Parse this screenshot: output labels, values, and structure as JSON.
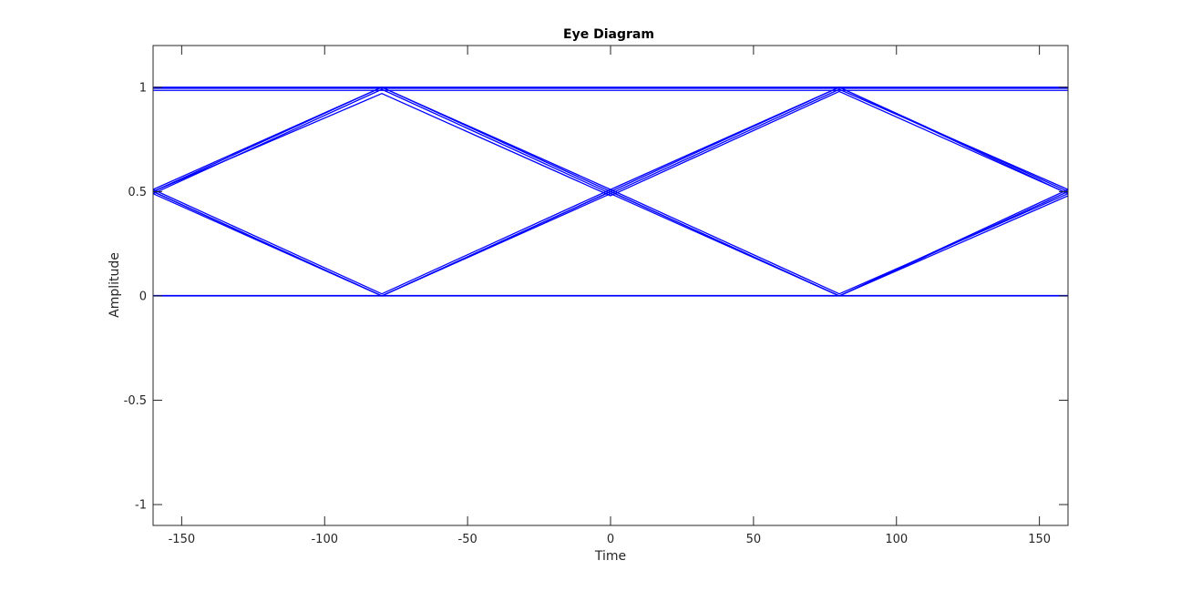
{
  "chart_data": {
    "type": "line",
    "title": "Eye Diagram",
    "xlabel": "Time",
    "ylabel": "Amplitude",
    "xlim": [
      -160,
      160
    ],
    "ylim": [
      -1.1,
      1.2
    ],
    "xticks": [
      -150,
      -100,
      -50,
      0,
      50,
      100,
      150
    ],
    "xtick_labels": [
      "-150",
      "-100",
      "-50",
      "0",
      "50",
      "100",
      "150"
    ],
    "yticks": [
      -1,
      -0.5,
      0,
      0.5,
      1
    ],
    "ytick_labels": [
      "-1",
      "-0.5",
      "0",
      "0.5",
      "1"
    ],
    "grid": false,
    "line_color": "#0000ff",
    "series": [
      {
        "x": [
          -160,
          160
        ],
        "y": [
          1,
          1
        ]
      },
      {
        "x": [
          -160,
          160
        ],
        "y": [
          0.995,
          0.995
        ]
      },
      {
        "x": [
          -160,
          160
        ],
        "y": [
          0.985,
          0.985
        ]
      },
      {
        "x": [
          -160,
          160
        ],
        "y": [
          0,
          0
        ]
      },
      {
        "x": [
          -160,
          160
        ],
        "y": [
          0.002,
          0.002
        ]
      },
      {
        "x": [
          -160,
          -80,
          0,
          80,
          160
        ],
        "y": [
          0.5,
          1,
          0.5,
          1,
          0.5
        ]
      },
      {
        "x": [
          -160,
          -80,
          0,
          80,
          160
        ],
        "y": [
          0.51,
          1,
          0.51,
          1,
          0.49
        ]
      },
      {
        "x": [
          -160,
          -80,
          0,
          80,
          160
        ],
        "y": [
          0.49,
          0.99,
          0.49,
          0.99,
          0.51
        ]
      },
      {
        "x": [
          -160,
          -80,
          0,
          80,
          160
        ],
        "y": [
          0.5,
          0.97,
          0.48,
          0.98,
          0.49
        ]
      },
      {
        "x": [
          -160,
          -80,
          0,
          80,
          160
        ],
        "y": [
          0.5,
          0,
          0.5,
          0,
          0.5
        ]
      },
      {
        "x": [
          -160,
          -80,
          0,
          80,
          160
        ],
        "y": [
          0.49,
          0,
          0.49,
          0,
          0.51
        ]
      },
      {
        "x": [
          -160,
          -80,
          0,
          80,
          160
        ],
        "y": [
          0.51,
          0.01,
          0.51,
          0.01,
          0.49
        ]
      },
      {
        "x": [
          -160,
          -80,
          0,
          80,
          160
        ],
        "y": [
          0.5,
          0,
          0.5,
          0,
          0.48
        ]
      }
    ]
  }
}
